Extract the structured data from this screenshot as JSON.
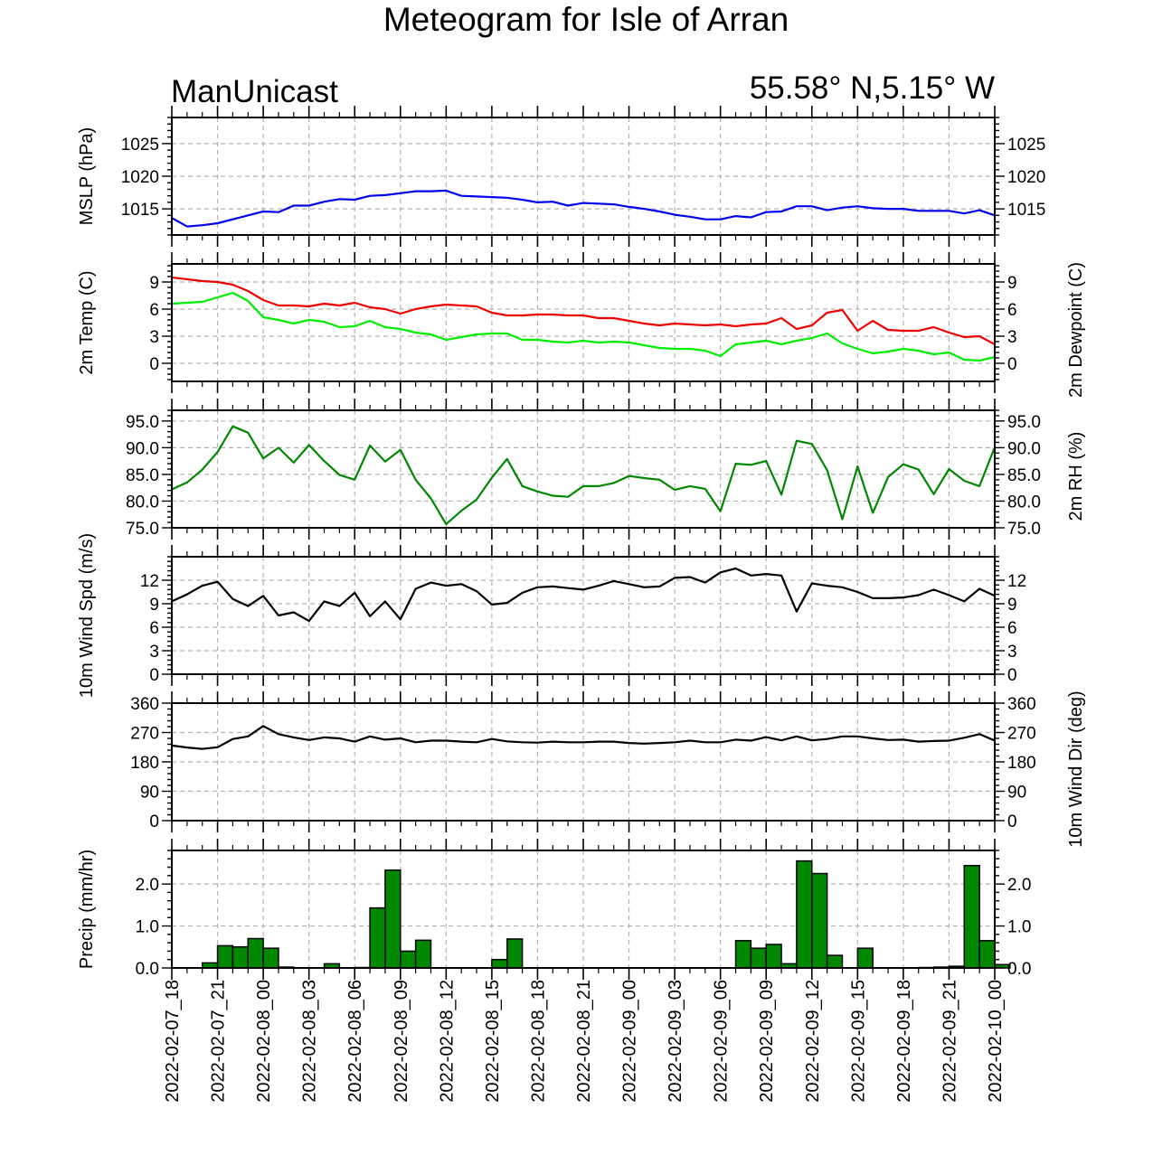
{
  "title": "Meteogram for Isle of Arran",
  "subtitle_left": "ManUnicast",
  "subtitle_right": "55.58° N,5.15° W",
  "x_tick_labels": [
    "2022-02-07_18",
    "2022-02-07_21",
    "2022-02-08_00",
    "2022-02-08_03",
    "2022-02-08_06",
    "2022-02-08_09",
    "2022-02-08_12",
    "2022-02-08_15",
    "2022-02-08_18",
    "2022-02-08_21",
    "2022-02-09_00",
    "2022-02-09_03",
    "2022-02-09_06",
    "2022-02-09_09",
    "2022-02-09_12",
    "2022-02-09_15",
    "2022-02-09_18",
    "2022-02-09_21",
    "2022-02-10_00"
  ],
  "colors": {
    "mslp": "#0000ee",
    "temp": "#ee0000",
    "dewpoint": "#00ee00",
    "rh": "#008800",
    "wind": "#000000",
    "precip_fill": "#008800",
    "grid": "#b4b4b4"
  },
  "chart_data": [
    {
      "type": "line",
      "ylabel": "MSLP (hPa)",
      "ylabel_right": "",
      "ylim": [
        1011,
        1029
      ],
      "yticks": [
        1015,
        1020,
        1025
      ],
      "ytick_labels": [
        "1015",
        "1020",
        "1025"
      ],
      "series": [
        {
          "values": [
            1013.6,
            1012.3,
            1012.5,
            1012.8,
            1013.4,
            1014.0,
            1014.6,
            1014.5,
            1015.5,
            1015.5,
            1016.1,
            1016.5,
            1016.4,
            1017.0,
            1017.1,
            1017.4,
            1017.7,
            1017.7,
            1017.8,
            1017.0,
            1016.9,
            1016.8,
            1016.7,
            1016.4,
            1016.0,
            1016.1,
            1015.5,
            1015.9,
            1015.8,
            1015.7,
            1015.3,
            1015.0,
            1014.6,
            1014.1,
            1013.8,
            1013.4,
            1013.4,
            1013.9,
            1013.7,
            1014.5,
            1014.6,
            1015.4,
            1015.4,
            1014.8,
            1015.2,
            1015.4,
            1015.1,
            1015.0,
            1015.0,
            1014.7,
            1014.7,
            1014.7,
            1014.3,
            1014.8,
            1014.0
          ]
        }
      ]
    },
    {
      "type": "line",
      "ylabel": "2m Temp (C)",
      "ylabel_right": "2m Dewpoint (C)",
      "ylim": [
        -2,
        11
      ],
      "yticks": [
        0,
        3,
        6,
        9
      ],
      "ytick_labels": [
        "0",
        "3",
        "6",
        "9"
      ],
      "series": [
        {
          "values": [
            9.5,
            9.3,
            9.1,
            9.0,
            8.7,
            8.0,
            7.0,
            6.4,
            6.4,
            6.3,
            6.6,
            6.4,
            6.7,
            6.2,
            6.0,
            5.5,
            6.0,
            6.3,
            6.5,
            6.4,
            6.3,
            5.6,
            5.3,
            5.3,
            5.4,
            5.4,
            5.3,
            5.3,
            5.0,
            5.0,
            4.7,
            4.4,
            4.2,
            4.4,
            4.3,
            4.2,
            4.3,
            4.1,
            4.3,
            4.4,
            5.0,
            3.8,
            4.2,
            5.6,
            5.9,
            3.6,
            4.7,
            3.7,
            3.6,
            3.6,
            4.0,
            3.4,
            2.9,
            3.0,
            2.1
          ]
        },
        {
          "values": [
            6.6,
            6.7,
            6.8,
            7.3,
            7.8,
            6.9,
            5.1,
            4.8,
            4.4,
            4.8,
            4.6,
            4.0,
            4.1,
            4.7,
            4.0,
            3.8,
            3.4,
            3.2,
            2.6,
            2.9,
            3.2,
            3.3,
            3.3,
            2.6,
            2.6,
            2.4,
            2.3,
            2.5,
            2.3,
            2.4,
            2.3,
            2.0,
            1.7,
            1.6,
            1.6,
            1.4,
            0.8,
            2.1,
            2.3,
            2.5,
            2.1,
            2.5,
            2.8,
            3.3,
            2.2,
            1.6,
            1.1,
            1.3,
            1.6,
            1.4,
            1.0,
            1.2,
            0.4,
            0.3,
            0.7
          ]
        }
      ]
    },
    {
      "type": "line",
      "ylabel": "",
      "ylabel_right": "2m RH (%)",
      "ylim": [
        75,
        97
      ],
      "yticks": [
        75,
        80,
        85,
        90,
        95
      ],
      "ytick_labels": [
        "75.0",
        "80.0",
        "85.0",
        "90.0",
        "95.0"
      ],
      "series": [
        {
          "values": [
            82.2,
            83.5,
            85.9,
            89.2,
            94.0,
            92.8,
            88.0,
            90.0,
            87.2,
            90.5,
            87.5,
            84.9,
            84.0,
            90.4,
            87.4,
            89.6,
            84.0,
            80.5,
            75.7,
            78.2,
            80.3,
            84.4,
            87.9,
            82.8,
            81.8,
            81.0,
            80.8,
            82.8,
            82.8,
            83.4,
            84.7,
            84.3,
            84.0,
            82.1,
            82.8,
            82.3,
            78.1,
            87.0,
            86.8,
            87.5,
            81.2,
            91.3,
            90.7,
            85.8,
            76.6,
            86.5,
            77.8,
            84.5,
            86.9,
            85.9,
            81.3,
            86.0,
            83.8,
            82.8,
            90.1
          ]
        }
      ]
    },
    {
      "type": "line",
      "ylabel": "10m Wind Spd (m/s)",
      "ylabel_right": "",
      "ylim": [
        0,
        15
      ],
      "yticks": [
        0,
        3,
        6,
        9,
        12
      ],
      "ytick_labels": [
        "0",
        "3",
        "6",
        "9",
        "12"
      ],
      "series": [
        {
          "values": [
            9.3,
            10.2,
            11.3,
            11.8,
            9.6,
            8.7,
            10.0,
            7.5,
            7.9,
            6.8,
            9.3,
            8.7,
            10.4,
            7.4,
            9.3,
            7.0,
            10.9,
            11.7,
            11.3,
            11.5,
            10.6,
            8.9,
            9.1,
            10.4,
            11.1,
            11.2,
            11.0,
            10.8,
            11.3,
            11.9,
            11.5,
            11.1,
            11.2,
            12.3,
            12.4,
            11.7,
            13.0,
            13.5,
            12.6,
            12.8,
            12.6,
            8.0,
            11.6,
            11.3,
            11.1,
            10.5,
            9.7,
            9.7,
            9.8,
            10.1,
            10.8,
            10.1,
            9.3,
            10.9,
            10.0
          ]
        }
      ]
    },
    {
      "type": "line",
      "ylabel": "",
      "ylabel_right": "10m Wind Dir (deg)",
      "ylim": [
        0,
        360
      ],
      "yticks": [
        0,
        90,
        180,
        270,
        360
      ],
      "ytick_labels": [
        "0",
        "90",
        "180",
        "270",
        "360"
      ],
      "series": [
        {
          "values": [
            230,
            224,
            220,
            225,
            250,
            258,
            290,
            265,
            255,
            247,
            255,
            252,
            242,
            258,
            248,
            252,
            240,
            245,
            245,
            242,
            240,
            250,
            243,
            240,
            239,
            242,
            240,
            240,
            242,
            242,
            238,
            236,
            238,
            240,
            245,
            240,
            240,
            248,
            245,
            256,
            246,
            258,
            246,
            250,
            258,
            258,
            252,
            247,
            248,
            242,
            244,
            245,
            254,
            265,
            245
          ]
        }
      ]
    },
    {
      "type": "bar",
      "ylabel": "Precip (mm/hr)",
      "ylabel_right": "",
      "ylim": [
        0,
        2.8
      ],
      "yticks": [
        0.0,
        1.0,
        2.0
      ],
      "ytick_labels": [
        "0.0",
        "1.0",
        "2.0"
      ],
      "series": [
        {
          "values": [
            0,
            0,
            0.12,
            0.53,
            0.5,
            0.7,
            0.47,
            0.02,
            0,
            0,
            0.1,
            0,
            0.01,
            1.43,
            2.33,
            0.4,
            0.66,
            0,
            0,
            0,
            0,
            0.2,
            0.69,
            0,
            0,
            0,
            0,
            0,
            0,
            0,
            0,
            0,
            0,
            0,
            0,
            0,
            0,
            0.65,
            0.47,
            0.56,
            0.1,
            2.55,
            2.25,
            0.3,
            0,
            0.47,
            0,
            0,
            0,
            0.01,
            0.02,
            0.04,
            2.44,
            0.65,
            0.08
          ]
        }
      ]
    }
  ]
}
